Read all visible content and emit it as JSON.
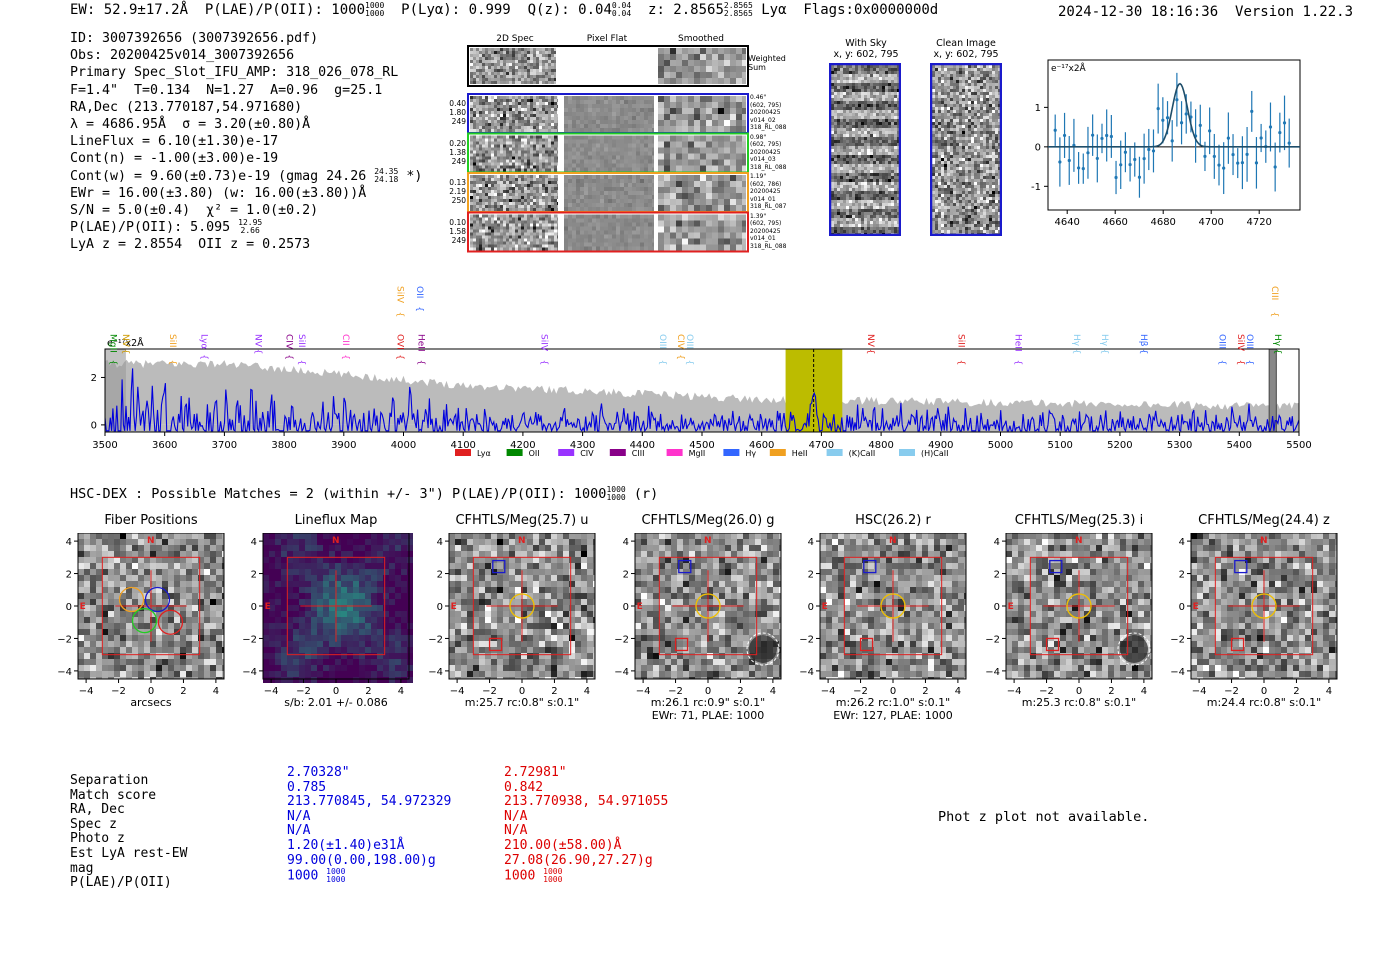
{
  "header": {
    "ew": "EW: 52.9±17.2Å",
    "plae": "P(LAE)/P(OII): 1000",
    "plae_hi": "1000",
    "plae_lo": "1000",
    "plya": "P(Lyα): 0.999",
    "qz": "Q(z): 0.04",
    "qz_hi": "0.04",
    "qz_lo": "0.04",
    "z": "z: 2.8565",
    "z_hi": "2.8565",
    "z_lo": "2.8565",
    "line": "Lyα",
    "flags": "Flags:0x0000000d",
    "datetime": "2024-12-30 18:16:36",
    "version": "Version 1.22.3"
  },
  "info": {
    "id": "ID: 3007392656 (3007392656.pdf)",
    "obs": "Obs: 20200425v014_3007392656",
    "primary": "Primary Spec_Slot_IFU_AMP: 318_026_078_RL",
    "params": "F=1.4\"  T=0.134  N=1.27  A=0.96  g=25.1",
    "radec": "RA,Dec (213.770187,54.971680)",
    "lambda": "λ = 4686.95Å  σ = 3.20(±0.80)Å",
    "lineflux": "LineFlux = 6.10(±1.30)e-17",
    "contn": "Cont(n) = -1.00(±3.00)e-19",
    "contw": "Cont(w) = 9.60(±0.73)e-19 (gmag 24.26",
    "contw_hi": "24.35",
    "contw_lo": "24.18",
    "contw_end": "*)",
    "ewr": "EWr = 16.00(±3.80) (w: 16.00(±3.80))Å",
    "sn": "S/N = 5.0(±0.4)  χ² = 1.0(±0.2)",
    "plae": "P(LAE)/P(OII): 5.095",
    "plae_hi": "12.95",
    "plae_lo": "2.66",
    "lyaz": "LyA z = 2.8554  OII z = 0.2573"
  },
  "fibers": {
    "headers": [
      "2D Spec",
      "Pixel Flat",
      "Smoothed"
    ],
    "weighted_label": "Weighted Sum",
    "rows": [
      {
        "color": "#1a1acc",
        "left": [
          "0.40",
          "1.80",
          "249"
        ],
        "right": [
          "0.46\"",
          "(602, 795)",
          "20200425",
          "v014_02",
          "318_RL_088"
        ]
      },
      {
        "color": "#22cc22",
        "left": [
          "0.20",
          "1.38",
          "249"
        ],
        "right": [
          "0.98\"",
          "(602, 795)",
          "20200425",
          "v014_03",
          "318_RL_088"
        ]
      },
      {
        "color": "#f0a020",
        "left": [
          "0.13",
          "2.19",
          "250"
        ],
        "right": [
          "1.19\"",
          "(602, 786)",
          "20200425",
          "v014_01",
          "318_RL_087"
        ]
      },
      {
        "color": "#e02020",
        "left": [
          "0.10",
          "1.58",
          "249"
        ],
        "right": [
          "1.39\"",
          "(602, 795)",
          "20200425",
          "v014_01",
          "318_RL_088"
        ]
      }
    ]
  },
  "sky": {
    "with_sky_title": "With Sky",
    "with_sky_xy": "x, y: 602, 795",
    "clean_title": "Clean Image",
    "clean_xy": "x, y: 602, 795"
  },
  "zoom_chart": {
    "ylabel": "e⁻¹⁷x2Å",
    "x_ticks": [
      "4640",
      "4660",
      "4680",
      "4700",
      "4720"
    ],
    "y_ticks": [
      "1",
      "0",
      "-1"
    ]
  },
  "line_labels": [
    {
      "name": "MgII",
      "wave": 3514,
      "color": "#008800"
    },
    {
      "name": "NV",
      "wave": 3535,
      "color": "#cc9900"
    },
    {
      "name": "SiII",
      "wave": 3614,
      "color": "#f0a020"
    },
    {
      "name": "Lyα",
      "wave": 3667,
      "color": "#9933ff"
    },
    {
      "name": "NV",
      "wave": 3757,
      "color": "#9933ff"
    },
    {
      "name": "CIV",
      "wave": 3809,
      "color": "#880088"
    },
    {
      "name": "SiII",
      "wave": 3830,
      "color": "#9933ff"
    },
    {
      "name": "CII",
      "wave": 3904,
      "color": "#ff33cc"
    },
    {
      "name": "SiIV",
      "wave": 3995,
      "color": "#f0a020",
      "high": true
    },
    {
      "name": "OVI",
      "wave": 3995,
      "color": "#e02020"
    },
    {
      "name": "OII",
      "wave": 4028,
      "color": "#3366ff",
      "high": true
    },
    {
      "name": "HeII",
      "wave": 4030,
      "color": "#880088"
    },
    {
      "name": "SiIV",
      "wave": 4236,
      "color": "#9933ff"
    },
    {
      "name": "OIII",
      "wave": 4435,
      "color": "#88ccee"
    },
    {
      "name": "CIV",
      "wave": 4465,
      "color": "#f0a020"
    },
    {
      "name": "OIII",
      "wave": 4480,
      "color": "#88ccee"
    },
    {
      "name": "NV",
      "wave": 4783,
      "color": "#e02020"
    },
    {
      "name": "SiII",
      "wave": 4935,
      "color": "#e02020"
    },
    {
      "name": "HeII",
      "wave": 5030,
      "color": "#9933ff"
    },
    {
      "name": "Hγ",
      "wave": 5128,
      "color": "#88ccee"
    },
    {
      "name": "Hγ",
      "wave": 5175,
      "color": "#88ccee"
    },
    {
      "name": "Hβ",
      "wave": 5240,
      "color": "#3366ff"
    },
    {
      "name": "OIII",
      "wave": 5372,
      "color": "#3366ff"
    },
    {
      "name": "SiIV",
      "wave": 5403,
      "color": "#e02020"
    },
    {
      "name": "OIII",
      "wave": 5418,
      "color": "#3366ff"
    },
    {
      "name": "CIII",
      "wave": 5460,
      "color": "#f0a020",
      "high": true
    },
    {
      "name": "Hγ",
      "wave": 5465,
      "color": "#008800"
    }
  ],
  "chart_data": {
    "type": "line",
    "title": "",
    "xlabel": "",
    "ylabel": "e⁻¹⁷x2Å",
    "xlim": [
      3500,
      5500
    ],
    "ylim": [
      -0.3,
      3.2
    ],
    "x_ticks": [
      "3500",
      "3600",
      "3700",
      "3800",
      "3900",
      "4000",
      "4100",
      "4200",
      "4300",
      "4400",
      "4500",
      "4600",
      "4700",
      "4800",
      "4900",
      "5000",
      "5100",
      "5200",
      "5300",
      "5400",
      "5500"
    ],
    "y_ticks": [
      "2",
      "0"
    ],
    "highlight_window": [
      4640,
      4735
    ],
    "line_center": 4687,
    "legend": [
      {
        "name": "Lyα",
        "color": "#e02020"
      },
      {
        "name": "OII",
        "color": "#008800"
      },
      {
        "name": "CIV",
        "color": "#9933ff"
      },
      {
        "name": "CIII",
        "color": "#880088"
      },
      {
        "name": "MgII",
        "color": "#ff33cc"
      },
      {
        "name": "Hγ",
        "color": "#3366ff"
      },
      {
        "name": "HeII",
        "color": "#f0a020"
      },
      {
        "name": "(K)CaII",
        "color": "#88ccee"
      },
      {
        "name": "(H)CaII",
        "color": "#88ccee"
      }
    ],
    "zoom": {
      "xlim": [
        4632,
        4737
      ],
      "ylim": [
        -1.6,
        2.2
      ],
      "center": 4686.95,
      "sigma": 3.2,
      "amplitude": 1.6
    }
  },
  "hsc": {
    "title": "HSC-DEX : Possible Matches = 2 (within +/- 3\")  P(LAE)/P(OII): 1000",
    "plae_hi": "1000",
    "plae_lo": "1000",
    "band": "(r)"
  },
  "cutouts": [
    {
      "title": "Fiber Positions",
      "cap1": "arcsecs",
      "cap2": ""
    },
    {
      "title": "Lineflux Map",
      "cap1": "s/b: 2.01 +/- 0.086",
      "cap2": ""
    },
    {
      "title": "CFHTLS/Meg(25.7) u",
      "cap1": "m:25.7 rc:0.8\"  s:0.1\"",
      "cap2": ""
    },
    {
      "title": "CFHTLS/Meg(26.0) g",
      "cap1": "m:26.1 rc:0.9\"  s:0.1\"",
      "cap2": "EWr: 71, PLAE: 1000"
    },
    {
      "title": "HSC(26.2) r",
      "cap1": "m:26.2 rc:1.0\"  s:0.1\"",
      "cap2": "EWr: 127, PLAE: 1000"
    },
    {
      "title": "CFHTLS/Meg(25.3) i",
      "cap1": "m:25.3 rc:0.8\"  s:0.1\"",
      "cap2": ""
    },
    {
      "title": "CFHTLS/Meg(24.4) z",
      "cap1": "m:24.4 rc:0.8\"  s:0.1\"",
      "cap2": ""
    }
  ],
  "cutout_axes": {
    "ticks": [
      "4",
      "2",
      "0",
      "−2",
      "−4"
    ],
    "xticks": [
      "−4",
      "−2",
      "0",
      "2",
      "4"
    ],
    "N": "N",
    "E": "E"
  },
  "table": {
    "labels": [
      "Separation",
      "Match score",
      "RA, Dec",
      "Spec z",
      "Photo z",
      "Est LyA rest-EW",
      "mag",
      "P(LAE)/P(OII)"
    ],
    "col1": [
      "2.70328\"",
      "0.785",
      "213.770845, 54.972329",
      "N/A",
      "N/A",
      "1.20(±1.40)e31Å",
      "99.00(0.00,198.00)g",
      "1000"
    ],
    "col1_plae_hi": "1000",
    "col1_plae_lo": "1000",
    "col2": [
      "2.72981\"",
      "0.842",
      "213.770938, 54.971055",
      "N/A",
      "N/A",
      "210.00(±58.00)Å",
      "27.08(26.90,27.27)g",
      "1000"
    ],
    "col2_plae_hi": "1000",
    "col2_plae_lo": "1000",
    "col1_color": "#0000dd",
    "col2_color": "#dd0000"
  },
  "photz_msg": "Phot z plot not available."
}
